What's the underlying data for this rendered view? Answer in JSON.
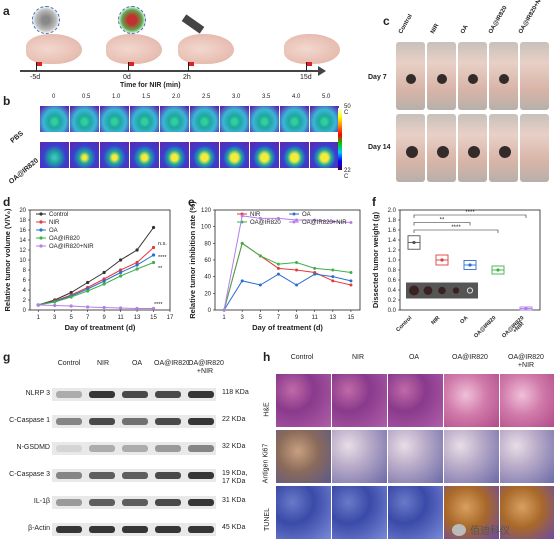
{
  "panels": {
    "a": {
      "letter": "a",
      "timepoints": [
        "-5d",
        "0d",
        "2h",
        "15d"
      ],
      "timeline_label": "Time for NIR (min)"
    },
    "b": {
      "letter": "b",
      "times": [
        "0",
        "0.5",
        "1.0",
        "1.5",
        "2.0",
        "2.5",
        "3.0",
        "3.5",
        "4.0",
        "5.0"
      ],
      "rows": [
        "PBS",
        "OA@IR820"
      ],
      "scale_max": "50 C",
      "scale_min": "22 C"
    },
    "c": {
      "letter": "c",
      "groups": [
        "Control",
        "NIR",
        "OA",
        "OA@IR820",
        "OA@IR820+NIR"
      ],
      "rows": [
        "Day 7",
        "Day 14"
      ]
    },
    "d": {
      "letter": "d",
      "ylabel": "Relative tumor volume (V/V₀)",
      "xlabel": "Day of treatment (d)",
      "annot_ns": "n.s.",
      "annot_stars": [
        "****",
        "**",
        "****"
      ]
    },
    "e": {
      "letter": "e",
      "ylabel": "Relative tumor inhibition rate (%)",
      "xlabel": "Day of treatment (d)"
    },
    "f": {
      "letter": "f",
      "ylabel": "Dissected tumor weight (g)",
      "sig": [
        "****",
        "**",
        "****"
      ]
    },
    "g": {
      "letter": "g",
      "columns": [
        "Control",
        "NIR",
        "OA",
        "OA@IR820",
        "OA@IR820\n+NIR"
      ],
      "proteins": [
        {
          "name": "NLRP 3",
          "size": "118 KDa"
        },
        {
          "name": "C-Caspase 1",
          "size": "22 KDa"
        },
        {
          "name": "N-GSDMD",
          "size": "32 KDa"
        },
        {
          "name": "C-Caspase 3",
          "size": "19 KDa,\n17 KDa"
        },
        {
          "name": "IL-1β",
          "size": "31 KDa"
        },
        {
          "name": "β-Actin",
          "size": "45 KDa"
        }
      ]
    },
    "h": {
      "letter": "h",
      "columns": [
        "Control",
        "NIR",
        "OA",
        "OA@IR820",
        "OA@IR820\n+NIR"
      ],
      "rows": [
        "H&E",
        "Antigen Ki67",
        "TUNEL"
      ],
      "watermark": "佰迪科仪"
    }
  },
  "chart_data": [
    {
      "type": "line",
      "xlabel": "Day of treatment (d)",
      "ylabel": "Relative tumor volume (V/V₀)",
      "xlim": [
        0,
        17
      ],
      "ylim": [
        0,
        20
      ],
      "xticks": [
        1,
        3,
        5,
        7,
        9,
        11,
        13,
        15,
        17
      ],
      "yticks": [
        0,
        2,
        4,
        6,
        8,
        10,
        12,
        14,
        16,
        18,
        20
      ],
      "x": [
        1,
        3,
        5,
        7,
        9,
        11,
        13,
        15
      ],
      "series": [
        {
          "name": "Control",
          "color": "#333333",
          "values": [
            1,
            2,
            3.5,
            5.5,
            7.5,
            10,
            12,
            16.5
          ]
        },
        {
          "name": "NIR",
          "color": "#e23a3a",
          "values": [
            1,
            1.8,
            3,
            4.5,
            6.2,
            8,
            9.5,
            12.5
          ]
        },
        {
          "name": "OA",
          "color": "#2a6fcf",
          "values": [
            1,
            1.7,
            2.8,
            4.2,
            5.8,
            7.5,
            9,
            11
          ]
        },
        {
          "name": "OA@IR820",
          "color": "#3fb04a",
          "values": [
            1,
            1.6,
            2.6,
            3.8,
            5.2,
            6.8,
            8.2,
            9.5
          ]
        },
        {
          "name": "OA@IR820+NIR",
          "color": "#b57ee6",
          "values": [
            1,
            0.9,
            0.8,
            0.6,
            0.5,
            0.4,
            0.3,
            0.3
          ]
        }
      ]
    },
    {
      "type": "line",
      "xlabel": "Day of treatment (d)",
      "ylabel": "Relative tumor inhibition rate (%)",
      "xlim": [
        0,
        16
      ],
      "ylim": [
        0,
        120
      ],
      "xticks": [
        1,
        3,
        5,
        7,
        9,
        11,
        13,
        15
      ],
      "yticks": [
        0,
        20,
        40,
        60,
        80,
        100,
        120
      ],
      "x": [
        1,
        3,
        5,
        7,
        9,
        11,
        13,
        15
      ],
      "series": [
        {
          "name": "NIR",
          "color": "#e23a3a",
          "values": [
            0,
            80,
            65,
            50,
            48,
            45,
            35,
            30
          ]
        },
        {
          "name": "OA",
          "color": "#2a6fcf",
          "values": [
            0,
            35,
            30,
            43,
            30,
            43,
            40,
            35
          ]
        },
        {
          "name": "OA@IR820",
          "color": "#3fb04a",
          "values": [
            0,
            80,
            65,
            55,
            57,
            50,
            48,
            45
          ]
        },
        {
          "name": "OA@IR820+NIR",
          "color": "#b57ee6",
          "values": [
            0,
            113,
            110,
            110,
            108,
            108,
            106,
            105
          ]
        }
      ]
    },
    {
      "type": "bar",
      "ylabel": "Dissected tumor weight (g)",
      "ylim": [
        0,
        2.0
      ],
      "yticks": [
        0,
        0.2,
        0.4,
        0.6,
        0.8,
        1.0,
        1.2,
        1.4,
        1.6,
        1.8,
        2.0
      ],
      "categories": [
        "Control",
        "NIR",
        "OA",
        "OA@IR820",
        "OA@IR820\n+NIR"
      ],
      "values": [
        1.35,
        1.0,
        0.9,
        0.8,
        0.03
      ],
      "colors": [
        "#555555",
        "#e23a3a",
        "#2a6fcf",
        "#3fb04a",
        "#b57ee6"
      ]
    }
  ]
}
